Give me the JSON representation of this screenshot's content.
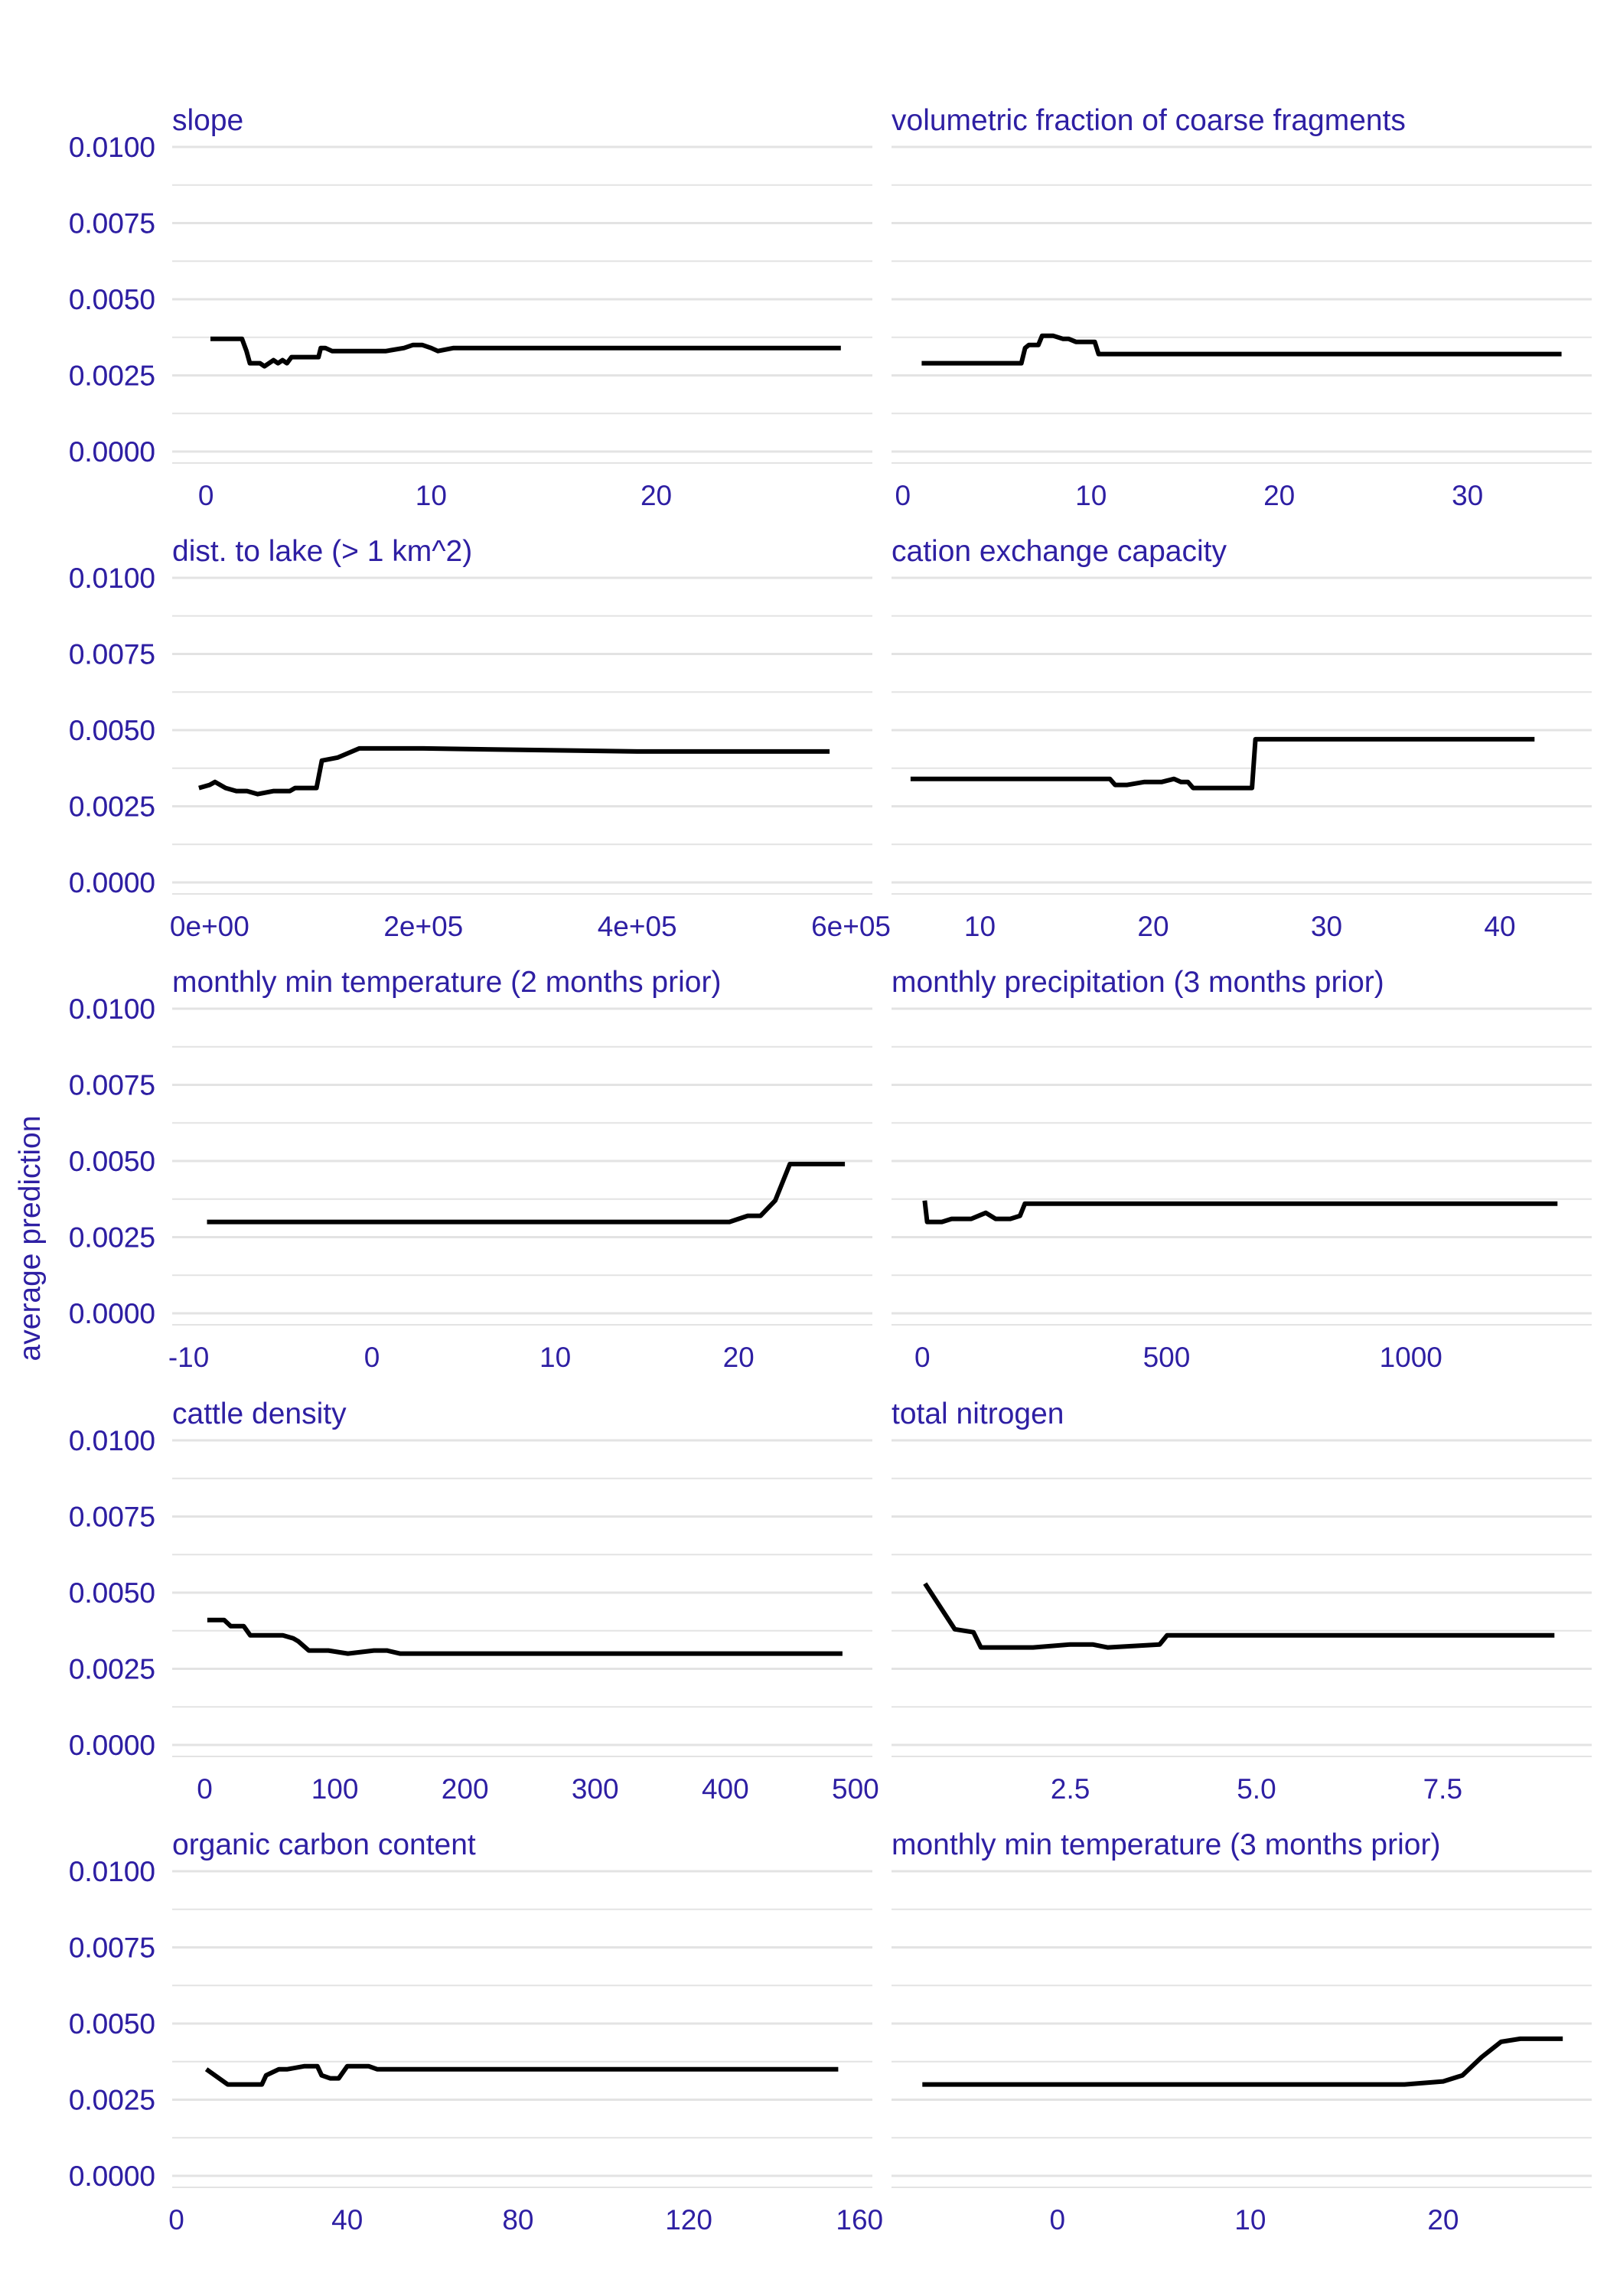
{
  "figure": {
    "y_axis_label": "average prediction",
    "text_color": "#2E1FA3",
    "line_color": "#000000",
    "grid_color": "#E3E3E3"
  },
  "chart_data": [
    {
      "type": "line",
      "title": "slope",
      "ylim": [
        0,
        0.01
      ],
      "y_ticks": [
        "0.0000",
        "0.0025",
        "0.0050",
        "0.0075",
        "0.0100"
      ],
      "y_tick_values": [
        0,
        0.0025,
        0.005,
        0.0075,
        0.01
      ],
      "xlim": [
        -1.5,
        29.6
      ],
      "x_ticks": [
        "0",
        "10",
        "20"
      ],
      "x_tick_values": [
        0,
        10,
        20
      ],
      "x": [
        0.2,
        1.6,
        1.8,
        1.95,
        2.4,
        2.6,
        3.0,
        3.2,
        3.4,
        3.6,
        3.8,
        4.5,
        5.0,
        5.1,
        5.3,
        5.6,
        6.0,
        6.5,
        7.0,
        8.0,
        8.8,
        9.2,
        9.6,
        10.0,
        10.3,
        11.0,
        12.0,
        15.0,
        20.0,
        25.0,
        28.2
      ],
      "y": [
        0.0037,
        0.0037,
        0.0033,
        0.0029,
        0.0029,
        0.0028,
        0.003,
        0.0029,
        0.003,
        0.0029,
        0.0031,
        0.0031,
        0.0031,
        0.0034,
        0.0034,
        0.0033,
        0.0033,
        0.0033,
        0.0033,
        0.0033,
        0.0034,
        0.0035,
        0.0035,
        0.0034,
        0.0033,
        0.0034,
        0.0034,
        0.0034,
        0.0034,
        0.0034,
        0.0034
      ]
    },
    {
      "type": "line",
      "title": "volumetric fraction of coarse fragments",
      "ylim": [
        0,
        0.01
      ],
      "y_ticks": [
        "0.0000",
        "0.0025",
        "0.0050",
        "0.0075",
        "0.0100"
      ],
      "y_tick_values": [
        0,
        0.0025,
        0.005,
        0.0075,
        0.01
      ],
      "xlim": [
        -0.6,
        36.6
      ],
      "x_ticks": [
        "0",
        "10",
        "20",
        "30"
      ],
      "x_tick_values": [
        0,
        10,
        20,
        30
      ],
      "x": [
        1.0,
        6.3,
        6.5,
        6.7,
        7.2,
        7.4,
        8.0,
        8.5,
        8.8,
        9.2,
        9.8,
        10.2,
        10.4,
        15.0,
        20.0,
        25.0,
        30.0,
        35.0
      ],
      "y": [
        0.0029,
        0.0029,
        0.0034,
        0.0035,
        0.0035,
        0.0038,
        0.0038,
        0.0037,
        0.0037,
        0.0036,
        0.0036,
        0.0036,
        0.0032,
        0.0032,
        0.0032,
        0.0032,
        0.0032,
        0.0032
      ]
    },
    {
      "type": "line",
      "title": "dist. to lake (> 1 km^2)",
      "ylim": [
        0,
        0.01
      ],
      "y_ticks": [
        "0.0000",
        "0.0025",
        "0.0050",
        "0.0075",
        "0.0100"
      ],
      "y_tick_values": [
        0,
        0.0025,
        0.005,
        0.0075,
        0.01
      ],
      "xlim": [
        -35000,
        620000
      ],
      "x_ticks": [
        "0e+00",
        "2e+05",
        "4e+05",
        "6e+05"
      ],
      "x_tick_values": [
        0,
        200000,
        400000,
        600000
      ],
      "x": [
        -10000,
        0,
        5000,
        15000,
        25000,
        35000,
        45000,
        60000,
        75000,
        80000,
        90000,
        100000,
        105000,
        120000,
        140000,
        200000,
        400000,
        580000
      ],
      "y": [
        0.0031,
        0.0032,
        0.0033,
        0.0031,
        0.003,
        0.003,
        0.0029,
        0.003,
        0.003,
        0.0031,
        0.0031,
        0.0031,
        0.004,
        0.0041,
        0.0044,
        0.0044,
        0.0043,
        0.0043
      ]
    },
    {
      "type": "line",
      "title": "cation exchange capacity",
      "ylim": [
        0,
        0.01
      ],
      "y_ticks": [
        "0.0000",
        "0.0025",
        "0.0050",
        "0.0075",
        "0.0100"
      ],
      "y_tick_values": [
        0,
        0.0025,
        0.005,
        0.0075,
        0.01
      ],
      "xlim": [
        4.9,
        45.3
      ],
      "x_ticks": [
        "10",
        "20",
        "30",
        "40"
      ],
      "x_tick_values": [
        10,
        20,
        30,
        40
      ],
      "x": [
        6.0,
        17.5,
        17.8,
        18.5,
        19.5,
        20.5,
        21.2,
        21.6,
        22.0,
        22.3,
        24.0,
        25.7,
        25.9,
        30.0,
        42.0
      ],
      "y": [
        0.0034,
        0.0034,
        0.0032,
        0.0032,
        0.0033,
        0.0033,
        0.0034,
        0.0033,
        0.0033,
        0.0031,
        0.0031,
        0.0031,
        0.0047,
        0.0047,
        0.0047
      ]
    },
    {
      "type": "line",
      "title": "monthly min temperature (2 months prior)",
      "ylim": [
        0,
        0.01
      ],
      "y_ticks": [
        "0.0000",
        "0.0025",
        "0.0050",
        "0.0075",
        "0.0100"
      ],
      "y_tick_values": [
        0,
        0.0025,
        0.005,
        0.0075,
        0.01
      ],
      "xlim": [
        -10.9,
        27.3
      ],
      "x_ticks": [
        "-10",
        "0",
        "10",
        "20"
      ],
      "x_tick_values": [
        -10,
        0,
        10,
        20
      ],
      "x": [
        -9.0,
        0.0,
        10.0,
        16.0,
        17.0,
        19.5,
        20.0,
        20.5,
        21.2,
        22.0,
        22.8,
        23.5,
        25.8
      ],
      "y": [
        0.003,
        0.003,
        0.003,
        0.003,
        0.003,
        0.003,
        0.0031,
        0.0032,
        0.0032,
        0.0037,
        0.0049,
        0.0049,
        0.0049
      ]
    },
    {
      "type": "line",
      "title": "monthly precipitation (3 months prior)",
      "ylim": [
        0,
        0.01
      ],
      "y_ticks": [
        "0.0000",
        "0.0025",
        "0.0050",
        "0.0075",
        "0.0100"
      ],
      "y_tick_values": [
        0,
        0.0025,
        0.005,
        0.0075,
        0.01
      ],
      "xlim": [
        -63,
        1370
      ],
      "x_ticks": [
        "0",
        "500",
        "1000"
      ],
      "x_tick_values": [
        0,
        500,
        1000
      ],
      "x": [
        5,
        10,
        40,
        60,
        80,
        100,
        130,
        150,
        180,
        200,
        210,
        500,
        1000,
        1300
      ],
      "y": [
        0.0037,
        0.003,
        0.003,
        0.0031,
        0.0031,
        0.0031,
        0.0033,
        0.0031,
        0.0031,
        0.0032,
        0.0036,
        0.0036,
        0.0036,
        0.0036
      ]
    },
    {
      "type": "line",
      "title": "cattle density",
      "ylim": [
        0,
        0.01
      ],
      "y_ticks": [
        "0.0000",
        "0.0025",
        "0.0050",
        "0.0075",
        "0.0100"
      ],
      "y_tick_values": [
        0,
        0.0025,
        0.005,
        0.0075,
        0.01
      ],
      "xlim": [
        -25,
        513
      ],
      "x_ticks": [
        "0",
        "100",
        "200",
        "300",
        "400",
        "500"
      ],
      "x_tick_values": [
        0,
        100,
        200,
        300,
        400,
        500
      ],
      "x": [
        2,
        15,
        20,
        30,
        35,
        40,
        50,
        60,
        68,
        72,
        80,
        95,
        110,
        130,
        140,
        150,
        200,
        300,
        400,
        490
      ],
      "y": [
        0.0041,
        0.0041,
        0.0039,
        0.0039,
        0.0036,
        0.0036,
        0.0036,
        0.0036,
        0.0035,
        0.0034,
        0.0031,
        0.0031,
        0.003,
        0.0031,
        0.0031,
        0.003,
        0.003,
        0.003,
        0.003,
        0.003
      ]
    },
    {
      "type": "line",
      "title": "total nitrogen",
      "ylim": [
        0,
        0.01
      ],
      "y_ticks": [
        "0.0000",
        "0.0025",
        "0.0050",
        "0.0075",
        "0.0100"
      ],
      "y_tick_values": [
        0,
        0.0025,
        0.005,
        0.0075,
        0.01
      ],
      "xlim": [
        0.1,
        9.5
      ],
      "x_ticks": [
        "2.5",
        "5.0",
        "7.5"
      ],
      "x_tick_values": [
        2.5,
        5.0,
        7.5
      ],
      "x": [
        0.55,
        0.95,
        1.2,
        1.3,
        1.5,
        2.0,
        2.5,
        2.8,
        3.0,
        3.7,
        3.8,
        4.5,
        6.0,
        9.0
      ],
      "y": [
        0.0053,
        0.0038,
        0.0037,
        0.0032,
        0.0032,
        0.0032,
        0.0033,
        0.0033,
        0.0032,
        0.0033,
        0.0036,
        0.0036,
        0.0036,
        0.0036
      ]
    },
    {
      "type": "line",
      "title": "organic carbon content",
      "ylim": [
        0,
        0.01
      ],
      "y_ticks": [
        "0.0000",
        "0.0025",
        "0.0050",
        "0.0075",
        "0.0100"
      ],
      "y_tick_values": [
        0,
        0.0025,
        0.005,
        0.0075,
        0.01
      ],
      "xlim": [
        -1,
        163
      ],
      "x_ticks": [
        "0",
        "40",
        "80",
        "120",
        "160"
      ],
      "x_tick_values": [
        0,
        40,
        80,
        120,
        160
      ],
      "x": [
        7,
        12,
        20,
        21,
        24,
        26,
        30,
        33,
        34,
        36,
        38,
        40,
        42,
        45,
        47,
        48,
        60,
        100,
        155
      ],
      "y": [
        0.0035,
        0.003,
        0.003,
        0.0033,
        0.0035,
        0.0035,
        0.0036,
        0.0036,
        0.0033,
        0.0032,
        0.0032,
        0.0036,
        0.0036,
        0.0036,
        0.0035,
        0.0035,
        0.0035,
        0.0035,
        0.0035
      ]
    },
    {
      "type": "line",
      "title": "monthly min temperature (3 months prior)",
      "ylim": [
        0,
        0.01
      ],
      "y_ticks": [
        "0.0000",
        "0.0025",
        "0.0050",
        "0.0075",
        "0.0100"
      ],
      "y_tick_values": [
        0,
        0.0025,
        0.005,
        0.0075,
        0.01
      ],
      "xlim": [
        -8.6,
        27.7
      ],
      "x_ticks": [
        "0",
        "10",
        "20"
      ],
      "x_tick_values": [
        0,
        10,
        20
      ],
      "x": [
        -7.0,
        0.0,
        10.0,
        16.0,
        17.0,
        18.0,
        20.0,
        21.0,
        22.0,
        23.0,
        24.0,
        26.2
      ],
      "y": [
        0.003,
        0.003,
        0.003,
        0.003,
        0.003,
        0.003,
        0.0031,
        0.0033,
        0.0039,
        0.0044,
        0.0045,
        0.0045
      ]
    }
  ]
}
